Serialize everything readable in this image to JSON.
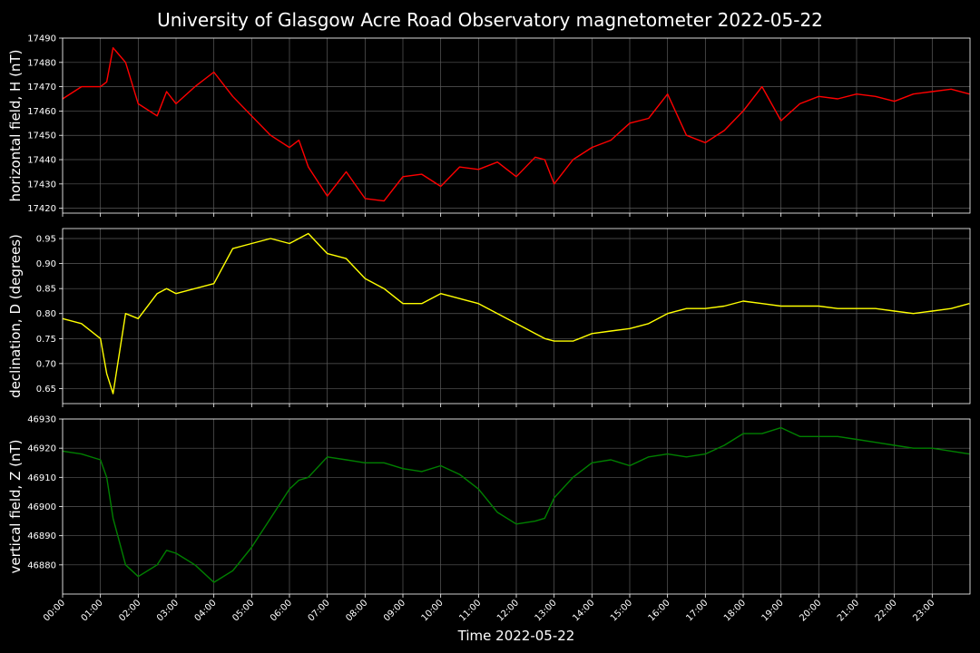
{
  "chart_data": {
    "type": "line",
    "title": "University of Glasgow Acre Road Observatory magnetometer 2022-05-22",
    "xlabel": "Time 2022-05-22",
    "x_ticks": [
      "00:00",
      "01:00",
      "02:00",
      "03:00",
      "04:00",
      "05:00",
      "06:00",
      "07:00",
      "08:00",
      "09:00",
      "10:00",
      "11:00",
      "12:00",
      "13:00",
      "14:00",
      "15:00",
      "16:00",
      "17:00",
      "18:00",
      "19:00",
      "20:00",
      "21:00",
      "22:00",
      "23:00"
    ],
    "xlim": [
      "00:00",
      "24:00"
    ],
    "x": [
      "00:00",
      "00:30",
      "01:00",
      "01:10",
      "01:20",
      "01:40",
      "02:00",
      "02:30",
      "02:45",
      "03:00",
      "03:30",
      "04:00",
      "04:30",
      "05:00",
      "05:30",
      "06:00",
      "06:15",
      "06:30",
      "07:00",
      "07:30",
      "08:00",
      "08:30",
      "09:00",
      "09:30",
      "10:00",
      "10:30",
      "11:00",
      "11:30",
      "12:00",
      "12:30",
      "12:45",
      "13:00",
      "13:30",
      "14:00",
      "14:30",
      "15:00",
      "15:30",
      "16:00",
      "16:30",
      "17:00",
      "17:30",
      "18:00",
      "18:30",
      "19:00",
      "19:30",
      "20:00",
      "20:30",
      "21:00",
      "21:30",
      "22:00",
      "22:30",
      "23:00",
      "23:30",
      "23:59"
    ],
    "grid": true,
    "panels": [
      {
        "ylabel": "horizontal field, H (nT)",
        "ylim": [
          17418,
          17490
        ],
        "yticks": [
          "17420",
          "17430",
          "17440",
          "17450",
          "17460",
          "17470",
          "17480",
          "17490"
        ],
        "color": "#ff0000",
        "values": [
          17465,
          17470,
          17470,
          17472,
          17486,
          17480,
          17463,
          17458,
          17468,
          17463,
          17470,
          17476,
          17466,
          17458,
          17450,
          17445,
          17448,
          17437,
          17425,
          17435,
          17424,
          17423,
          17433,
          17434,
          17429,
          17437,
          17436,
          17439,
          17433,
          17441,
          17440,
          17430,
          17440,
          17445,
          17448,
          17455,
          17457,
          17467,
          17450,
          17447,
          17452,
          17460,
          17470,
          17456,
          17463,
          17466,
          17465,
          17467,
          17466,
          17464,
          17467,
          17468,
          17469,
          17467
        ]
      },
      {
        "ylabel": "declination, D (degrees)",
        "ylim": [
          0.62,
          0.97
        ],
        "yticks": [
          "0.65",
          "0.70",
          "0.75",
          "0.80",
          "0.85",
          "0.90",
          "0.95"
        ],
        "color": "#ffff00",
        "values": [
          0.79,
          0.78,
          0.75,
          0.68,
          0.64,
          0.8,
          0.79,
          0.84,
          0.85,
          0.84,
          0.85,
          0.86,
          0.93,
          0.94,
          0.95,
          0.94,
          0.95,
          0.96,
          0.92,
          0.91,
          0.87,
          0.85,
          0.82,
          0.82,
          0.84,
          0.83,
          0.82,
          0.8,
          0.78,
          0.76,
          0.75,
          0.745,
          0.745,
          0.76,
          0.765,
          0.77,
          0.78,
          0.8,
          0.81,
          0.81,
          0.815,
          0.825,
          0.82,
          0.815,
          0.815,
          0.815,
          0.81,
          0.81,
          0.81,
          0.805,
          0.8,
          0.805,
          0.81,
          0.82
        ]
      },
      {
        "ylabel": "vertical field, Z (nT)",
        "ylim": [
          46870,
          46930
        ],
        "yticks": [
          "46880",
          "46890",
          "46900",
          "46910",
          "46920",
          "46930"
        ],
        "color": "#008000",
        "values": [
          46919,
          46918,
          46916,
          46910,
          46896,
          46880,
          46876,
          46880,
          46885,
          46884,
          46880,
          46874,
          46878,
          46886,
          46896,
          46906,
          46909,
          46910,
          46917,
          46916,
          46915,
          46915,
          46913,
          46912,
          46914,
          46911,
          46906,
          46898,
          46894,
          46895,
          46896,
          46903,
          46910,
          46915,
          46916,
          46914,
          46917,
          46918,
          46917,
          46918,
          46921,
          46925,
          46925,
          46927,
          46924,
          46924,
          46924,
          46923,
          46922,
          46921,
          46920,
          46920,
          46919,
          46918
        ]
      }
    ]
  }
}
